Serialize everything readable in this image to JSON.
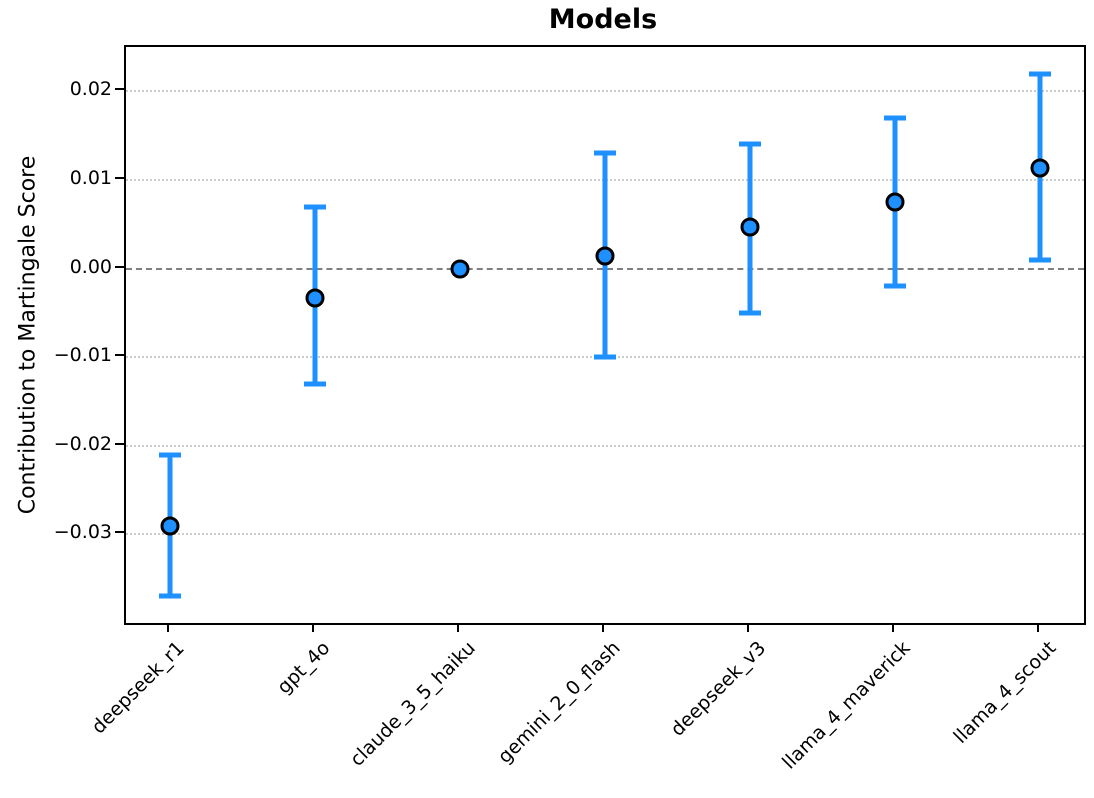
{
  "title": "Models",
  "colors": {
    "series": "#1E90FF",
    "marker_edge": "#000000",
    "zero_line": "#7f7f7f",
    "grid": "#cccccc",
    "spine": "#000000",
    "background": "#ffffff"
  },
  "chart_data": {
    "type": "scatter",
    "title": "Models",
    "xlabel": "",
    "ylabel": "Contribution to Martingale Score",
    "categories": [
      "deepseek_r1",
      "gpt_4o",
      "claude_3_5_haiku",
      "gemini_2_0_flash",
      "deepseek_v3",
      "llama_4_maverick",
      "llama_4_scout"
    ],
    "values": [
      -0.029,
      -0.0033,
      0.0,
      0.0014,
      0.0047,
      0.0075,
      0.0113
    ],
    "error_high": [
      -0.021,
      0.007,
      0.0,
      0.013,
      0.014,
      0.017,
      0.022
    ],
    "error_low": [
      -0.037,
      -0.013,
      0.0,
      -0.01,
      -0.005,
      -0.002,
      0.001
    ],
    "yticks": [
      0.02,
      0.01,
      0.0,
      -0.01,
      -0.02,
      -0.03
    ],
    "ytick_labels": [
      "0.02",
      "0.01",
      "0.00",
      "−0.01",
      "−0.02",
      "−0.03"
    ],
    "ylim": [
      -0.04,
      0.025
    ],
    "grid": true,
    "zero_line": true,
    "legend": "none",
    "marker": "circle",
    "series_color": "#1E90FF"
  }
}
